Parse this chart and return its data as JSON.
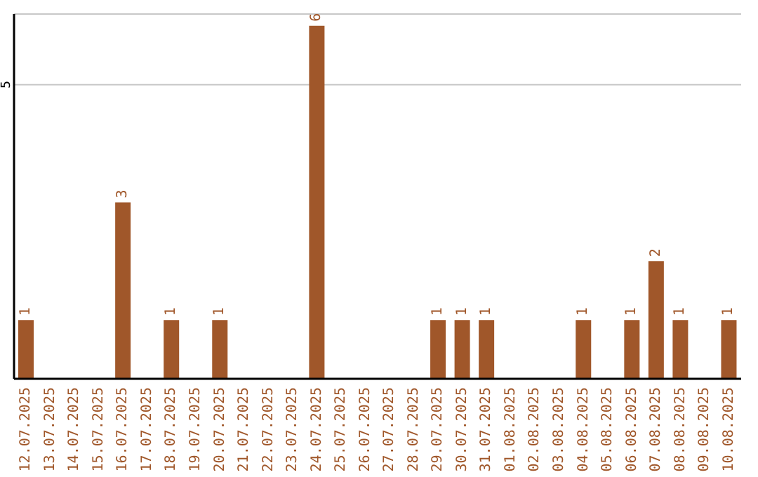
{
  "chart_data": {
    "type": "bar",
    "categories": [
      "12.07.2025",
      "13.07.2025",
      "14.07.2025",
      "15.07.2025",
      "16.07.2025",
      "17.07.2025",
      "18.07.2025",
      "19.07.2025",
      "20.07.2025",
      "21.07.2025",
      "22.07.2025",
      "23.07.2025",
      "24.07.2025",
      "25.07.2025",
      "26.07.2025",
      "27.07.2025",
      "28.07.2025",
      "29.07.2025",
      "30.07.2025",
      "31.07.2025",
      "01.08.2025",
      "02.08.2025",
      "03.08.2025",
      "04.08.2025",
      "05.08.2025",
      "06.08.2025",
      "07.08.2025",
      "08.08.2025",
      "09.08.2025",
      "10.08.2025"
    ],
    "values": [
      1,
      0,
      0,
      0,
      3,
      0,
      1,
      0,
      1,
      0,
      0,
      0,
      6,
      0,
      0,
      0,
      0,
      1,
      1,
      1,
      0,
      0,
      0,
      1,
      0,
      1,
      2,
      1,
      0,
      1
    ],
    "value_labels": [
      "1",
      null,
      null,
      null,
      "3",
      null,
      "1",
      null,
      "1",
      null,
      null,
      null,
      "6",
      null,
      null,
      null,
      null,
      "1",
      "1",
      "1",
      null,
      null,
      null,
      "1",
      null,
      "1",
      "2",
      "1",
      null,
      "1"
    ],
    "color": "#a0572a",
    "ylim": [
      0,
      6.2
    ],
    "yticks": [
      5
    ],
    "grid": "y",
    "legend": false
  }
}
